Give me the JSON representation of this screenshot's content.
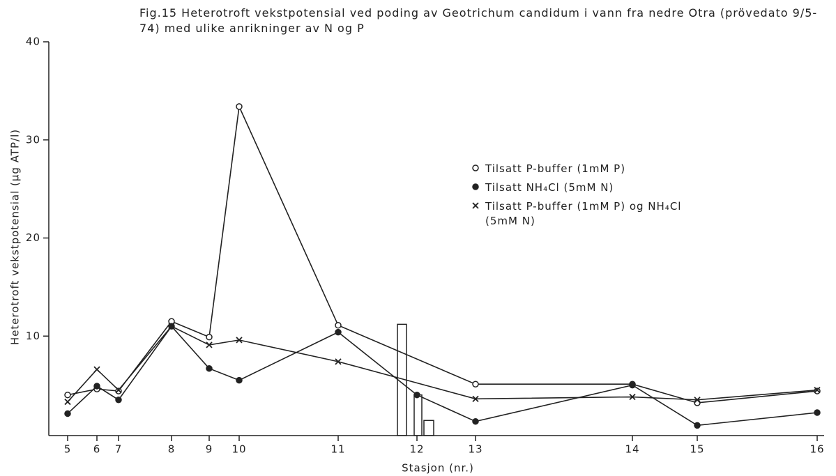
{
  "chart_data": {
    "type": "line",
    "title": "Fig.15 Heterotroft vekstpotensial ved poding av Geotrichum candidum i vann fra nedre Otra (prövedato 9/5-74) med ulike anrikninger av N og P",
    "x_label": "Stasjon (nr.)",
    "y_label": "Heterotroft vekstpotensial (µg ATP/l)",
    "categories": [
      "5",
      "6",
      "7",
      "8",
      "9",
      "10",
      "11",
      "12",
      "13",
      "14",
      "15",
      "16"
    ],
    "ylim": [
      0,
      40
    ],
    "yticks": [
      10,
      20,
      30,
      40
    ],
    "series": [
      {
        "name": "Tilsatt P-buffer (1mM P)",
        "marker": "open-circle",
        "color": "#222",
        "x": [
          "5",
          "6",
          "7",
          "8",
          "9",
          "10",
          "11",
          "13",
          "14",
          "15",
          "16"
        ],
        "values": [
          4.0,
          4.6,
          4.4,
          11.5,
          9.9,
          33.4,
          11.1,
          5.1,
          5.1,
          3.2,
          4.4
        ]
      },
      {
        "name": "Tilsatt NH₄Cl (5mM N)",
        "marker": "filled-circle",
        "color": "#222",
        "x": [
          "5",
          "6",
          "7",
          "8",
          "9",
          "10",
          "11",
          "12",
          "13",
          "14",
          "15",
          "16"
        ],
        "values": [
          2.1,
          4.9,
          3.5,
          11.0,
          6.7,
          5.5,
          10.4,
          4.0,
          1.3,
          5.0,
          0.9,
          2.2
        ]
      },
      {
        "name": "Tilsatt P-buffer (1mM P) og NH₄Cl (5mM N)",
        "marker": "cross",
        "color": "#222",
        "x": [
          "5",
          "6",
          "7",
          "8",
          "9",
          "10",
          "11",
          "13",
          "14",
          "15",
          "16"
        ],
        "values": [
          3.3,
          6.6,
          4.5,
          11.0,
          9.1,
          9.6,
          7.4,
          3.6,
          3.8,
          3.5,
          4.5
        ]
      }
    ],
    "bars": [
      11.2,
      4.0,
      1.4
    ]
  }
}
